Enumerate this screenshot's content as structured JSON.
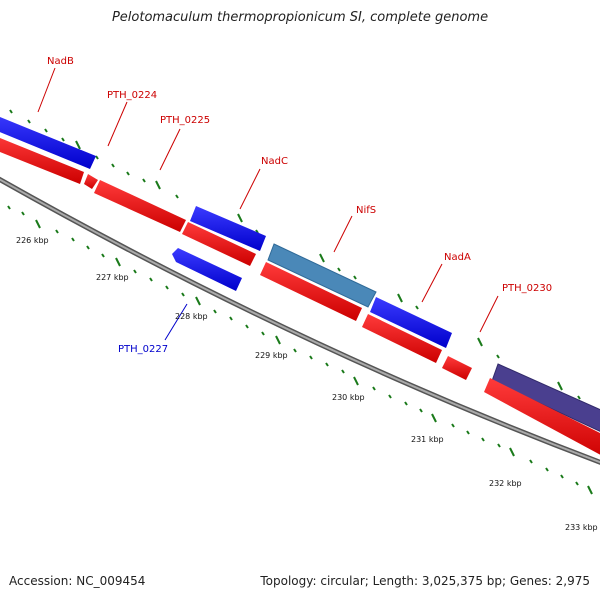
{
  "title": "Pelotomaculum thermopropionicum SI, complete genome",
  "footer": {
    "accession": "Accession: NC_009454",
    "summary": "Topology: circular; Length: 3,025,375 bp; Genes: 2,975"
  },
  "colors": {
    "forward_gene": "#0000ee",
    "reverse_gene": "#ee0000",
    "highlight_gene": "#4a88b8",
    "dark_gene": "#4a3f8f",
    "forward_label": "#cc0000",
    "reverse_label": "#0000cc",
    "tick": "#1a7a1a",
    "backbone": "#888888"
  },
  "scale_labels": [
    "226 kbp",
    "227 kbp",
    "228 kbp",
    "229 kbp",
    "230 kbp",
    "231 kbp",
    "232 kbp",
    "233 kbp"
  ],
  "gene_labels": [
    {
      "text": "NadB",
      "strand": "forward"
    },
    {
      "text": "PTH_0224",
      "strand": "forward"
    },
    {
      "text": "PTH_0225",
      "strand": "forward"
    },
    {
      "text": "NadC",
      "strand": "forward"
    },
    {
      "text": "NifS",
      "strand": "forward"
    },
    {
      "text": "NadA",
      "strand": "forward"
    },
    {
      "text": "PTH_0230",
      "strand": "forward"
    },
    {
      "text": "PTH_0227",
      "strand": "reverse"
    }
  ]
}
